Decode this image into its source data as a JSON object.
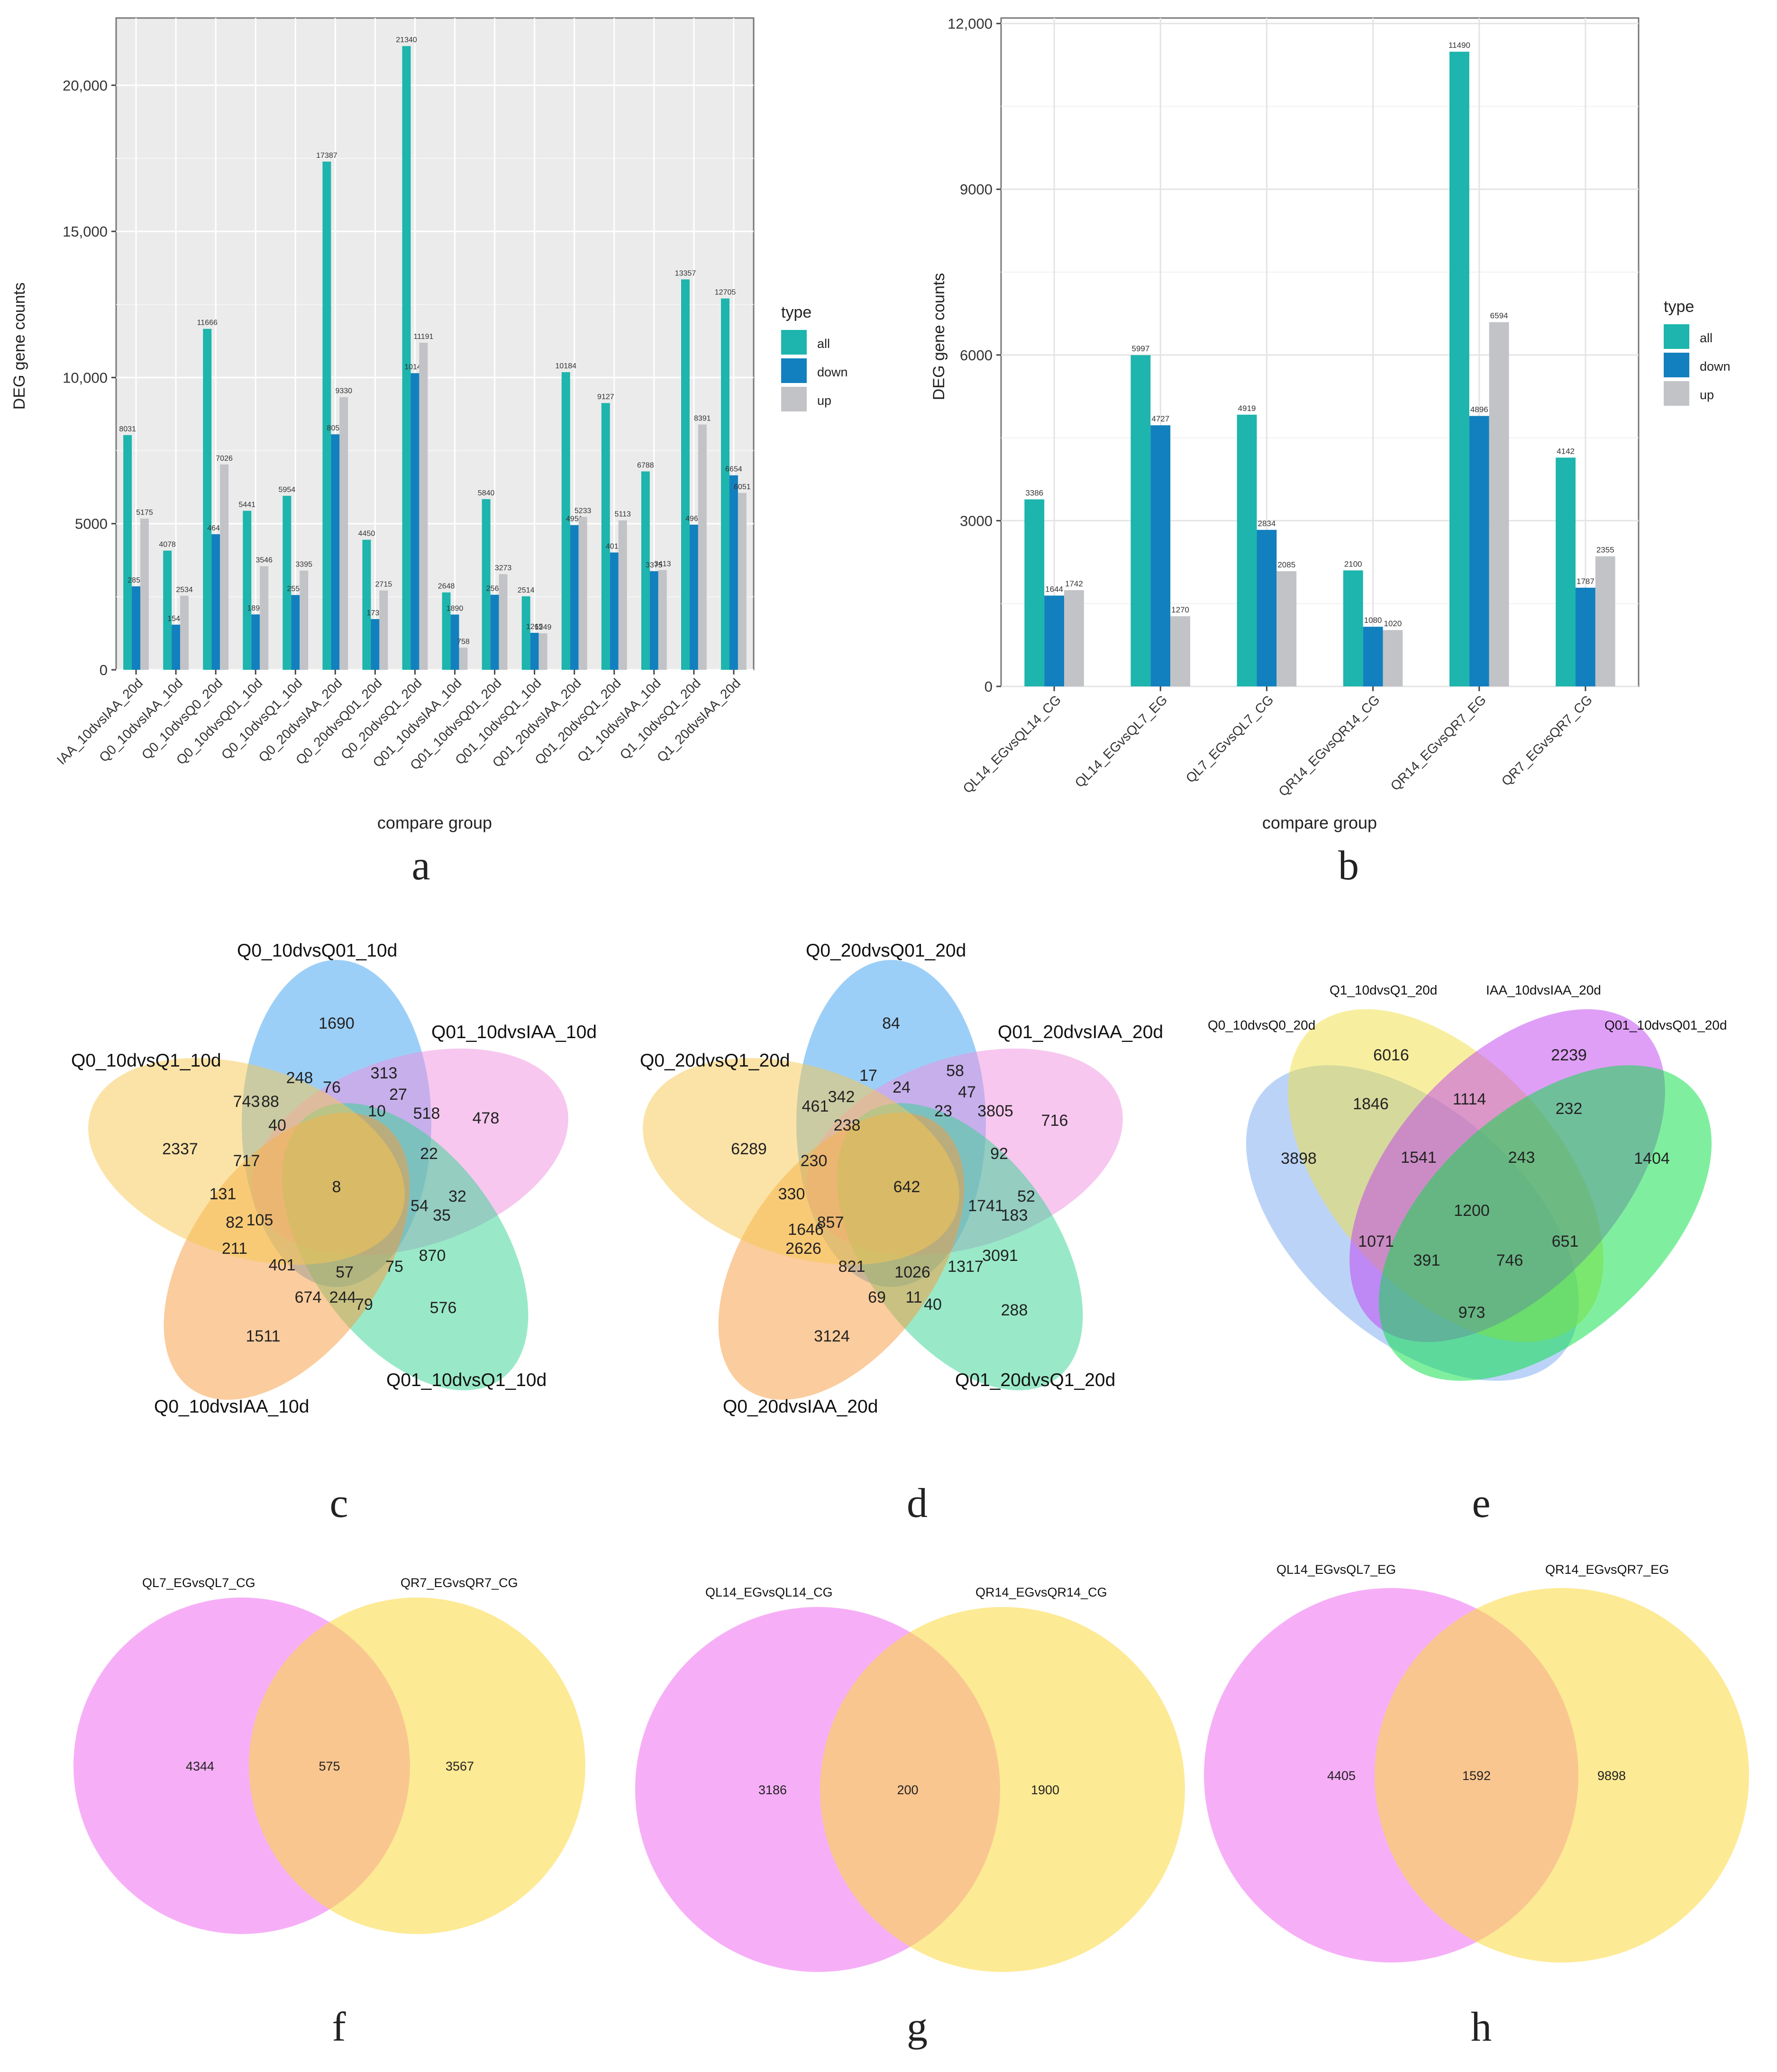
{
  "figure": {
    "panel_letters": [
      "a",
      "b",
      "c",
      "d",
      "e",
      "f",
      "g",
      "h"
    ],
    "legend_title": "type",
    "legend_items": [
      "all",
      "down",
      "up"
    ],
    "colors": {
      "all": "#1db5ad",
      "down": "#1280be",
      "up": "#c2c3c7"
    }
  },
  "chart_data": [
    {
      "type": "bar",
      "title": "",
      "xlabel": "compare group",
      "ylabel": "DEG gene counts",
      "ylim": [
        0,
        22300
      ],
      "yticks": [
        0,
        5000,
        10000,
        15000,
        20000
      ],
      "ytick_labels": [
        "0",
        "5000",
        "10,000",
        "15,000",
        "20,000"
      ],
      "categories": [
        "IAA_10dvsIAA_20d",
        "Q0_10dvsIAA_10d",
        "Q0_10dvsQ0_20d",
        "Q0_10dvsQ01_10d",
        "Q0_10dvsQ1_10d",
        "Q0_20dvsIAA_20d",
        "Q0_20dvsQ01_20d",
        "Q0_20dvsQ1_20d",
        "Q01_10dvsIAA_10d",
        "Q01_10dvsQ01_20d",
        "Q01_10dvsQ1_10d",
        "Q01_20dvsIAA_20d",
        "Q01_20dvsQ1_20d",
        "Q1_10dvsIAA_10d",
        "Q1_10dvsQ1_20d",
        "Q1_20dvsIAA_20d"
      ],
      "series": [
        {
          "name": "all",
          "values": [
            8031,
            4078,
            11666,
            5441,
            5954,
            17387,
            4450,
            21340,
            2648,
            5840,
            2514,
            10184,
            9127,
            6788,
            13357,
            12705
          ]
        },
        {
          "name": "down",
          "values": [
            2856,
            1544,
            4640,
            1895,
            2559,
            8057,
            1735,
            10149,
            1890,
            2567,
            1265,
            4951,
            4014,
            3375,
            4966,
            6654
          ]
        },
        {
          "name": "up",
          "values": [
            5175,
            2534,
            7026,
            3546,
            3395,
            9330,
            2715,
            11191,
            758,
            3273,
            1249,
            5233,
            5113,
            3413,
            8391,
            6051
          ]
        }
      ]
    },
    {
      "type": "bar",
      "title": "",
      "xlabel": "compare group",
      "ylabel": "DEG gene counts",
      "ylim": [
        0,
        12100
      ],
      "yticks": [
        0,
        3000,
        6000,
        9000,
        12000
      ],
      "ytick_labels": [
        "0",
        "3000",
        "6000",
        "9000",
        "12,000"
      ],
      "categories": [
        "QL14_EGvsQL14_CG",
        "QL14_EGvsQL7_EG",
        "QL7_EGvsQL7_CG",
        "QR14_EGvsQR14_CG",
        "QR14_EGvsQR7_EG",
        "QR7_EGvsQR7_CG"
      ],
      "series": [
        {
          "name": "all",
          "values": [
            3386,
            5997,
            4919,
            2100,
            11490,
            4142
          ]
        },
        {
          "name": "down",
          "values": [
            1644,
            4727,
            2834,
            1080,
            4896,
            1787
          ]
        },
        {
          "name": "up",
          "values": [
            1742,
            1270,
            2085,
            1020,
            6594,
            2355
          ]
        }
      ]
    }
  ],
  "venns": {
    "c": {
      "sets": [
        "Q0_10dvsQ01_10d",
        "Q01_10dvsIAA_10d",
        "Q01_10dvsQ1_10d",
        "Q0_10dvsIAA_10d",
        "Q0_10dvsQ1_10d"
      ],
      "counts": [
        "1690",
        "478",
        "576",
        "1511",
        "2337",
        "313",
        "248",
        "88",
        "76",
        "27",
        "518",
        "743",
        "10",
        "40",
        "22",
        "717",
        "8",
        "131",
        "32",
        "54",
        "35",
        "82",
        "105",
        "211",
        "870",
        "401",
        "57",
        "75",
        "674",
        "244",
        "79"
      ]
    },
    "d": {
      "sets": [
        "Q0_20dvsQ01_20d",
        "Q01_20dvsIAA_20d",
        "Q01_20dvsQ1_20d",
        "Q0_20dvsIAA_20d",
        "Q0_20dvsQ1_20d"
      ],
      "counts": [
        "84",
        "716",
        "288",
        "3124",
        "6289",
        "17",
        "58",
        "461",
        "342",
        "24",
        "47",
        "238",
        "23",
        "3805",
        "92",
        "230",
        "642",
        "330",
        "1741",
        "52",
        "857",
        "183",
        "1646",
        "2626",
        "3091",
        "821",
        "1026",
        "1317",
        "69",
        "11",
        "40"
      ]
    },
    "e": {
      "sets": [
        "Q1_10dvsQ1_20d",
        "IAA_10dvsIAA_20d",
        "Q0_10dvsQ0_20d",
        "Q01_10dvsQ01_20d"
      ],
      "counts": [
        "6016",
        "2239",
        "3898",
        "1404",
        "1846",
        "1114",
        "232",
        "1541",
        "243",
        "1200",
        "1071",
        "651",
        "391",
        "746",
        "973"
      ]
    },
    "f": {
      "sets": [
        "QL7_EGvsQL7_CG",
        "QR7_EGvsQR7_CG"
      ],
      "counts": [
        "4344",
        "575",
        "3567"
      ]
    },
    "g": {
      "sets": [
        "QL14_EGvsQL14_CG",
        "QR14_EGvsQR14_CG"
      ],
      "counts": [
        "3186",
        "200",
        "1900"
      ]
    },
    "h": {
      "sets": [
        "QL14_EGvsQL7_EG",
        "QR14_EGvsQR7_EG"
      ],
      "counts": [
        "4405",
        "1592",
        "9898"
      ]
    }
  }
}
